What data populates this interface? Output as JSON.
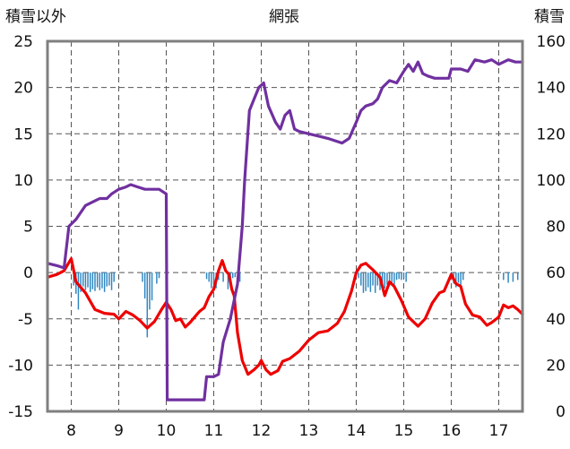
{
  "chart_data": {
    "type": "line",
    "title": "網張",
    "y_left_label": "積雪以外",
    "y_right_label": "積雪",
    "y_left_range": [
      -15,
      25
    ],
    "y_right_range": [
      0,
      160
    ],
    "y_left_ticks": [
      "25",
      "20",
      "15",
      "10",
      "5",
      "0",
      "-5",
      "-10",
      "-15"
    ],
    "y_right_ticks": [
      "160",
      "140",
      "120",
      "100",
      "80",
      "60",
      "40",
      "20",
      "0"
    ],
    "x_range": [
      7.5,
      17.5
    ],
    "x_ticks": [
      8,
      9,
      10,
      11,
      12,
      13,
      14,
      15,
      16,
      17
    ],
    "x_tick_labels": [
      "8",
      "9",
      "10",
      "11",
      "12",
      "13",
      "14",
      "15",
      "16",
      "17"
    ],
    "grid": true,
    "colors": {
      "temperature": "#ee0000",
      "snow_depth": "#7030a0",
      "precipitation": "#2e86c1",
      "frame": "#7f7f7f",
      "grid": "#555555"
    },
    "series": [
      {
        "axis": "left",
        "color": "#ee0000",
        "points": [
          [
            7.5,
            -0.5
          ],
          [
            7.7,
            -0.2
          ],
          [
            7.85,
            0.2
          ],
          [
            8.0,
            1.5
          ],
          [
            8.1,
            -1.0
          ],
          [
            8.3,
            -2.2
          ],
          [
            8.5,
            -4.0
          ],
          [
            8.7,
            -4.4
          ],
          [
            8.9,
            -4.5
          ],
          [
            9.0,
            -5.0
          ],
          [
            9.15,
            -4.2
          ],
          [
            9.3,
            -4.6
          ],
          [
            9.45,
            -5.2
          ],
          [
            9.6,
            -6.0
          ],
          [
            9.75,
            -5.3
          ],
          [
            9.9,
            -4.0
          ],
          [
            10.0,
            -3.2
          ],
          [
            10.1,
            -4.0
          ],
          [
            10.2,
            -5.2
          ],
          [
            10.3,
            -5.0
          ],
          [
            10.4,
            -5.9
          ],
          [
            10.5,
            -5.4
          ],
          [
            10.6,
            -4.8
          ],
          [
            10.7,
            -4.2
          ],
          [
            10.8,
            -3.8
          ],
          [
            10.9,
            -2.6
          ],
          [
            11.0,
            -1.8
          ],
          [
            11.1,
            0.2
          ],
          [
            11.18,
            1.3
          ],
          [
            11.25,
            0.2
          ],
          [
            11.32,
            -0.2
          ],
          [
            11.38,
            -1.8
          ],
          [
            11.43,
            -2.5
          ],
          [
            11.5,
            -6.5
          ],
          [
            11.6,
            -9.5
          ],
          [
            11.72,
            -11.0
          ],
          [
            11.85,
            -10.5
          ],
          [
            11.95,
            -10.0
          ],
          [
            12.0,
            -9.5
          ],
          [
            12.1,
            -10.5
          ],
          [
            12.2,
            -11.0
          ],
          [
            12.35,
            -10.6
          ],
          [
            12.45,
            -9.6
          ],
          [
            12.6,
            -9.3
          ],
          [
            12.8,
            -8.5
          ],
          [
            13.0,
            -7.3
          ],
          [
            13.2,
            -6.5
          ],
          [
            13.4,
            -6.3
          ],
          [
            13.6,
            -5.5
          ],
          [
            13.75,
            -4.2
          ],
          [
            13.9,
            -2.0
          ],
          [
            14.0,
            0.0
          ],
          [
            14.1,
            0.8
          ],
          [
            14.2,
            1.0
          ],
          [
            14.35,
            0.3
          ],
          [
            14.5,
            -0.5
          ],
          [
            14.6,
            -2.5
          ],
          [
            14.7,
            -1.0
          ],
          [
            14.8,
            -1.5
          ],
          [
            14.95,
            -3.0
          ],
          [
            15.1,
            -4.8
          ],
          [
            15.3,
            -5.8
          ],
          [
            15.45,
            -5.0
          ],
          [
            15.6,
            -3.3
          ],
          [
            15.75,
            -2.2
          ],
          [
            15.85,
            -2.0
          ],
          [
            16.0,
            -0.2
          ],
          [
            16.1,
            -1.2
          ],
          [
            16.2,
            -1.5
          ],
          [
            16.3,
            -3.4
          ],
          [
            16.45,
            -4.6
          ],
          [
            16.6,
            -4.8
          ],
          [
            16.75,
            -5.7
          ],
          [
            16.85,
            -5.4
          ],
          [
            17.0,
            -4.8
          ],
          [
            17.1,
            -3.5
          ],
          [
            17.2,
            -3.8
          ],
          [
            17.3,
            -3.6
          ],
          [
            17.4,
            -4.0
          ],
          [
            17.5,
            -4.5
          ]
        ]
      },
      {
        "axis": "right",
        "color": "#7030a0",
        "points": [
          [
            7.5,
            64
          ],
          [
            7.7,
            63
          ],
          [
            7.85,
            62
          ],
          [
            7.95,
            80
          ],
          [
            8.1,
            83
          ],
          [
            8.2,
            86
          ],
          [
            8.3,
            89
          ],
          [
            8.4,
            90
          ],
          [
            8.5,
            91
          ],
          [
            8.6,
            92
          ],
          [
            8.75,
            92
          ],
          [
            8.85,
            94
          ],
          [
            9.0,
            96
          ],
          [
            9.15,
            97
          ],
          [
            9.25,
            98
          ],
          [
            9.4,
            97
          ],
          [
            9.55,
            96
          ],
          [
            9.7,
            96
          ],
          [
            9.85,
            96
          ],
          [
            10.0,
            94
          ],
          [
            10.02,
            5
          ],
          [
            10.2,
            5
          ],
          [
            10.5,
            5
          ],
          [
            10.8,
            5
          ],
          [
            10.85,
            15
          ],
          [
            11.0,
            15
          ],
          [
            11.1,
            16
          ],
          [
            11.2,
            30
          ],
          [
            11.35,
            40
          ],
          [
            11.5,
            55
          ],
          [
            11.6,
            80
          ],
          [
            11.65,
            100
          ],
          [
            11.75,
            130
          ],
          [
            11.85,
            135
          ],
          [
            11.95,
            140
          ],
          [
            12.05,
            142
          ],
          [
            12.15,
            132
          ],
          [
            12.3,
            125
          ],
          [
            12.4,
            122
          ],
          [
            12.5,
            128
          ],
          [
            12.6,
            130
          ],
          [
            12.7,
            122
          ],
          [
            12.8,
            121
          ],
          [
            13.0,
            120
          ],
          [
            13.2,
            119
          ],
          [
            13.4,
            118
          ],
          [
            13.55,
            117
          ],
          [
            13.7,
            116
          ],
          [
            13.85,
            118
          ],
          [
            14.0,
            125
          ],
          [
            14.1,
            130
          ],
          [
            14.2,
            132
          ],
          [
            14.35,
            133
          ],
          [
            14.45,
            135
          ],
          [
            14.55,
            140
          ],
          [
            14.7,
            143
          ],
          [
            14.85,
            142
          ],
          [
            15.0,
            147
          ],
          [
            15.1,
            150
          ],
          [
            15.2,
            147
          ],
          [
            15.3,
            151
          ],
          [
            15.4,
            146
          ],
          [
            15.5,
            145
          ],
          [
            15.65,
            144
          ],
          [
            15.8,
            144
          ],
          [
            15.95,
            144
          ],
          [
            16.0,
            148
          ],
          [
            16.2,
            148
          ],
          [
            16.35,
            147
          ],
          [
            16.5,
            152
          ],
          [
            16.7,
            151
          ],
          [
            16.85,
            152
          ],
          [
            17.0,
            150
          ],
          [
            17.2,
            152
          ],
          [
            17.35,
            151
          ],
          [
            17.5,
            151
          ]
        ]
      },
      {
        "axis": "left",
        "color": "#2e86c1",
        "type": "bar",
        "bars": [
          [
            7.7,
            -0.2
          ],
          [
            8.05,
            -1.4
          ],
          [
            8.1,
            -2.3
          ],
          [
            8.15,
            -4.0
          ],
          [
            8.2,
            -2.1
          ],
          [
            8.25,
            -1.5
          ],
          [
            8.3,
            -1.9
          ],
          [
            8.35,
            -1.6
          ],
          [
            8.4,
            -2.1
          ],
          [
            8.45,
            -1.8
          ],
          [
            8.5,
            -2.0
          ],
          [
            8.55,
            -1.6
          ],
          [
            8.6,
            -1.9
          ],
          [
            8.65,
            -1.7
          ],
          [
            8.7,
            -2.1
          ],
          [
            8.75,
            -1.5
          ],
          [
            8.8,
            -1.4
          ],
          [
            8.85,
            -1.9
          ],
          [
            8.9,
            -1.0
          ],
          [
            9.5,
            -1.0
          ],
          [
            9.55,
            -2.8
          ],
          [
            9.6,
            -7.0
          ],
          [
            9.65,
            -4.0
          ],
          [
            9.7,
            -3.0
          ],
          [
            9.8,
            -1.2
          ],
          [
            9.85,
            -0.6
          ],
          [
            10.85,
            -0.7
          ],
          [
            10.9,
            -1.0
          ],
          [
            10.95,
            -1.7
          ],
          [
            11.0,
            -1.2
          ],
          [
            11.05,
            -1.7
          ],
          [
            11.1,
            -0.8
          ],
          [
            11.2,
            -1.0
          ],
          [
            11.3,
            -1.8
          ],
          [
            11.35,
            -0.9
          ],
          [
            11.4,
            -0.6
          ],
          [
            11.45,
            -0.5
          ],
          [
            11.55,
            -1.0
          ],
          [
            14.05,
            -0.6
          ],
          [
            14.1,
            -1.4
          ],
          [
            14.15,
            -2.2
          ],
          [
            14.2,
            -2.0
          ],
          [
            14.25,
            -1.6
          ],
          [
            14.3,
            -2.1
          ],
          [
            14.35,
            -1.4
          ],
          [
            14.4,
            -2.2
          ],
          [
            14.45,
            -1.4
          ],
          [
            14.5,
            -1.9
          ],
          [
            14.55,
            -1.1
          ],
          [
            14.6,
            -1.7
          ],
          [
            14.65,
            -1.3
          ],
          [
            14.7,
            -1.5
          ],
          [
            14.75,
            -1.2
          ],
          [
            14.8,
            -1.5
          ],
          [
            14.85,
            -0.8
          ],
          [
            14.9,
            -0.7
          ],
          [
            14.95,
            -0.8
          ],
          [
            15.0,
            -0.6
          ],
          [
            15.05,
            -1.0
          ],
          [
            16.0,
            -0.8
          ],
          [
            16.05,
            -1.2
          ],
          [
            16.1,
            -1.6
          ],
          [
            16.15,
            -1.1
          ],
          [
            16.2,
            -1.4
          ],
          [
            16.25,
            -0.8
          ],
          [
            17.1,
            -0.8
          ],
          [
            17.2,
            -1.1
          ],
          [
            17.3,
            -1.0
          ],
          [
            17.4,
            -0.8
          ]
        ]
      }
    ]
  }
}
